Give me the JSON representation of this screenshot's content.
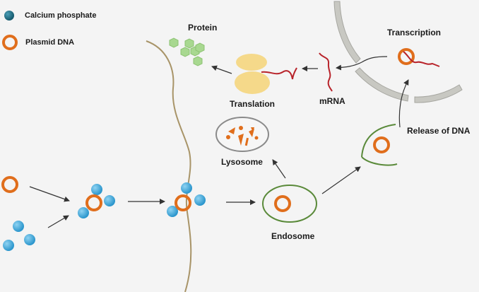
{
  "legend": {
    "calcium_phosphate": "Calcium phosphate",
    "plasmid_dna": "Plasmid DNA"
  },
  "labels": {
    "protein": "Protein",
    "translation": "Translation",
    "mrna": "mRNA",
    "transcription": "Transcription",
    "lysosome": "Lysosome",
    "release_of_dna": "Release of DNA",
    "endosome": "Endosome"
  },
  "colors": {
    "background": "#f4f4f4",
    "plasmid_ring": "#e06e1c",
    "calcium_particle": "#3aa6d8",
    "legend_calcium": "#1f6e85",
    "endosome_membrane": "#5a8a3a",
    "cell_membrane": "#a89468",
    "ribosome": "#f5d98a",
    "mrna_strand": "#b8232a",
    "protein": "#a8d890",
    "nucleus_envelope": "#c2c2bc",
    "lysosome_membrane": "#8a8a8a",
    "arrow": "#333333"
  }
}
